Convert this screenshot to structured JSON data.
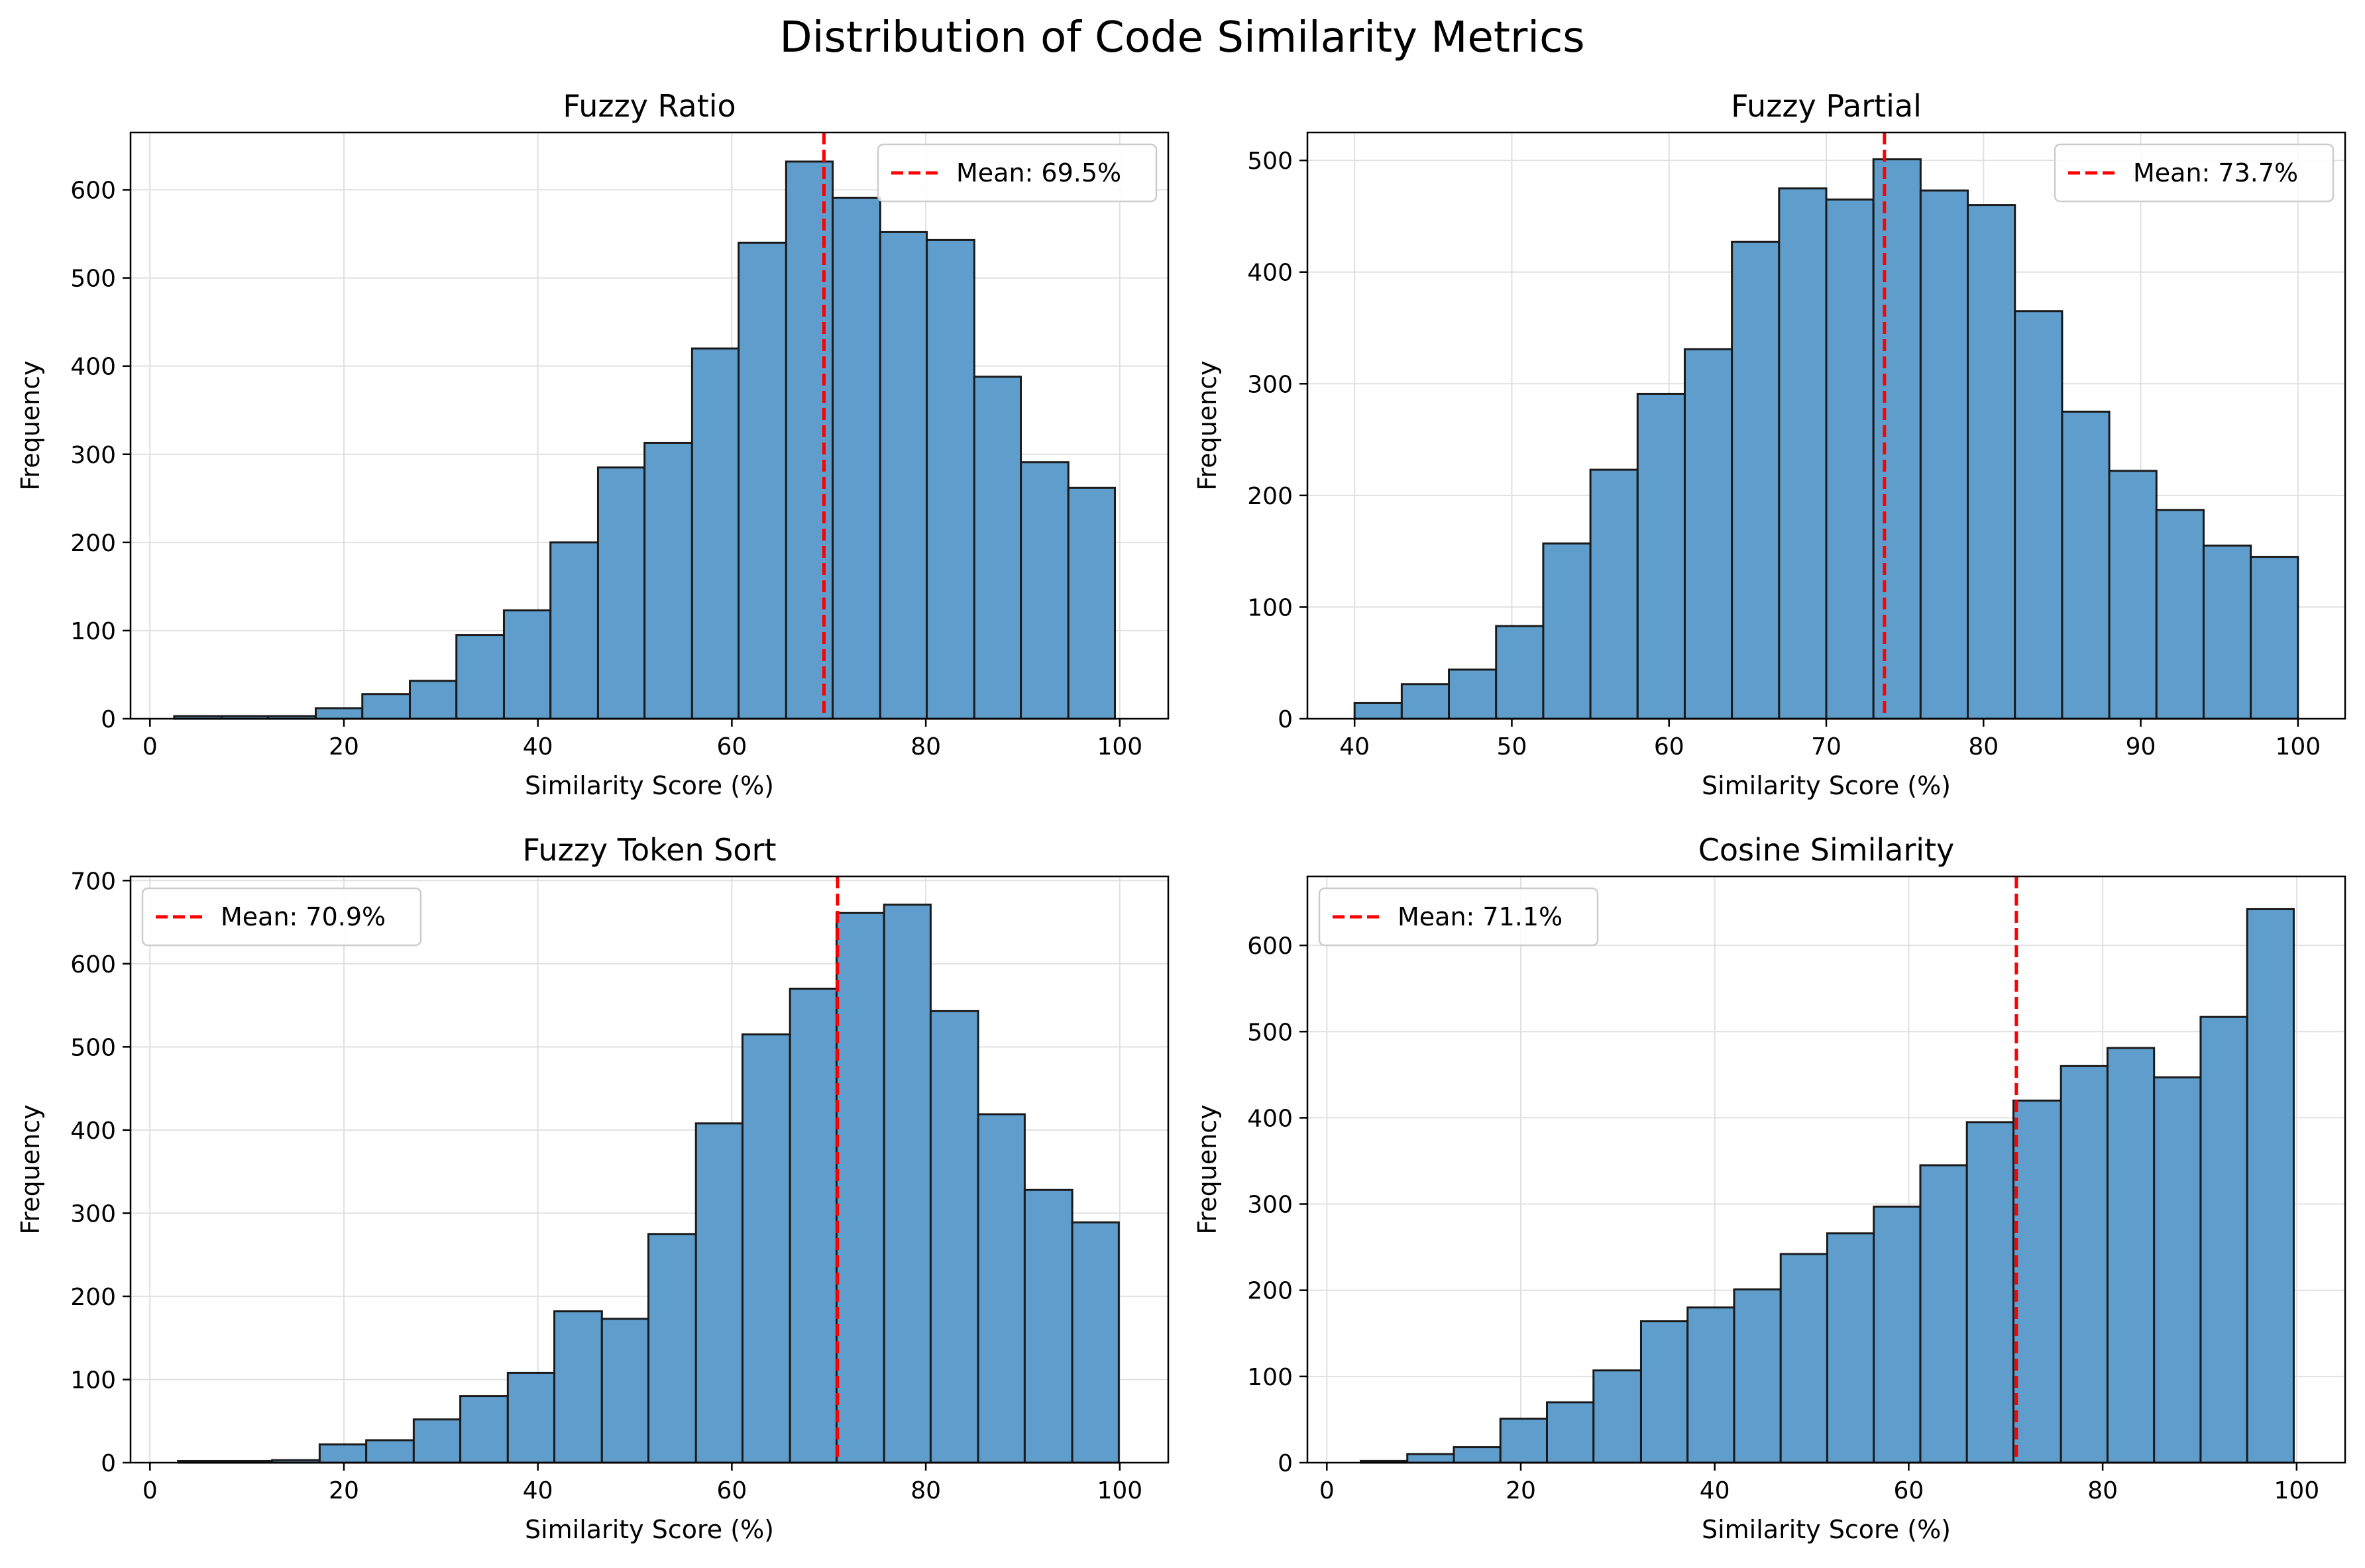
{
  "figure": {
    "title": "Distribution of Code Similarity Metrics"
  },
  "colors": {
    "bar": "#5f9ecc",
    "bar_edge": "#1a1a1a",
    "mean_line": "#ff0000",
    "grid": "#e0e0e0"
  },
  "chart_data": [
    {
      "type": "bar",
      "title": "Fuzzy Ratio",
      "xlabel": "Similarity Score (%)",
      "ylabel": "Frequency",
      "xlim": [
        -2,
        105
      ],
      "ylim": [
        0,
        665
      ],
      "xticks": [
        0,
        20,
        40,
        60,
        80,
        100
      ],
      "yticks": [
        0,
        100,
        200,
        300,
        400,
        500,
        600
      ],
      "grid": true,
      "bin_edges": [
        2.5,
        7.4,
        12.2,
        17.1,
        21.9,
        26.8,
        31.6,
        36.5,
        41.3,
        46.2,
        51.0,
        55.9,
        60.7,
        65.6,
        70.4,
        75.3,
        80.1,
        85.0,
        89.8,
        94.7,
        99.5
      ],
      "counts": [
        3,
        3,
        3,
        12,
        28,
        43,
        95,
        123,
        200,
        285,
        313,
        420,
        540,
        632,
        591,
        552,
        543,
        388,
        291,
        262
      ],
      "mean": 69.5,
      "legend": {
        "label": "Mean: 69.5%",
        "position": "upper right"
      }
    },
    {
      "type": "bar",
      "title": "Fuzzy Partial",
      "xlabel": "Similarity Score (%)",
      "ylabel": "Frequency",
      "xlim": [
        37,
        103
      ],
      "ylim": [
        0,
        525
      ],
      "xticks": [
        40,
        50,
        60,
        70,
        80,
        90,
        100
      ],
      "yticks": [
        0,
        100,
        200,
        300,
        400,
        500
      ],
      "grid": true,
      "bin_edges": [
        40,
        43,
        46,
        49,
        52,
        55,
        58,
        61,
        64,
        67,
        70,
        73,
        76,
        79,
        82,
        85,
        88,
        91,
        94,
        97,
        100
      ],
      "counts": [
        14,
        31,
        44,
        83,
        157,
        223,
        291,
        331,
        427,
        475,
        465,
        501,
        473,
        460,
        365,
        275,
        222,
        187,
        155,
        145
      ],
      "mean": 73.7,
      "legend": {
        "label": "Mean: 73.7%",
        "position": "upper right"
      }
    },
    {
      "type": "bar",
      "title": "Fuzzy Token Sort",
      "xlabel": "Similarity Score (%)",
      "ylabel": "Frequency",
      "xlim": [
        -2,
        105
      ],
      "ylim": [
        0,
        705
      ],
      "xticks": [
        0,
        20,
        40,
        60,
        80,
        100
      ],
      "yticks": [
        0,
        100,
        200,
        300,
        400,
        500,
        600,
        700
      ],
      "grid": true,
      "bin_edges": [
        2.9,
        7.8,
        12.6,
        17.5,
        22.3,
        27.2,
        32.0,
        36.9,
        41.7,
        46.6,
        51.4,
        56.3,
        61.1,
        66.0,
        70.8,
        75.7,
        80.5,
        85.4,
        90.2,
        95.1,
        99.9
      ],
      "counts": [
        2,
        2,
        3,
        22,
        27,
        52,
        80,
        108,
        182,
        173,
        275,
        408,
        515,
        570,
        661,
        671,
        543,
        419,
        328,
        289
      ],
      "mean": 70.9,
      "legend": {
        "label": "Mean: 70.9%",
        "position": "upper left"
      }
    },
    {
      "type": "bar",
      "title": "Cosine Similarity",
      "xlabel": "Similarity Score (%)",
      "ylabel": "Frequency",
      "xlim": [
        -2,
        105
      ],
      "ylim": [
        0,
        680
      ],
      "xticks": [
        0,
        20,
        40,
        60,
        80,
        100
      ],
      "yticks": [
        0,
        100,
        200,
        300,
        400,
        500,
        600
      ],
      "grid": true,
      "bin_edges": [
        3.5,
        8.3,
        13.1,
        17.9,
        22.7,
        27.5,
        32.4,
        37.2,
        42.0,
        46.8,
        51.6,
        56.4,
        61.2,
        66.0,
        70.8,
        75.7,
        80.5,
        85.3,
        90.1,
        94.9,
        99.7
      ],
      "counts": [
        2,
        10,
        18,
        51,
        70,
        107,
        164,
        180,
        201,
        242,
        266,
        297,
        345,
        395,
        420,
        460,
        481,
        447,
        517,
        642
      ],
      "mean": 71.1,
      "legend": {
        "label": "Mean: 71.1%",
        "position": "upper left"
      }
    }
  ]
}
